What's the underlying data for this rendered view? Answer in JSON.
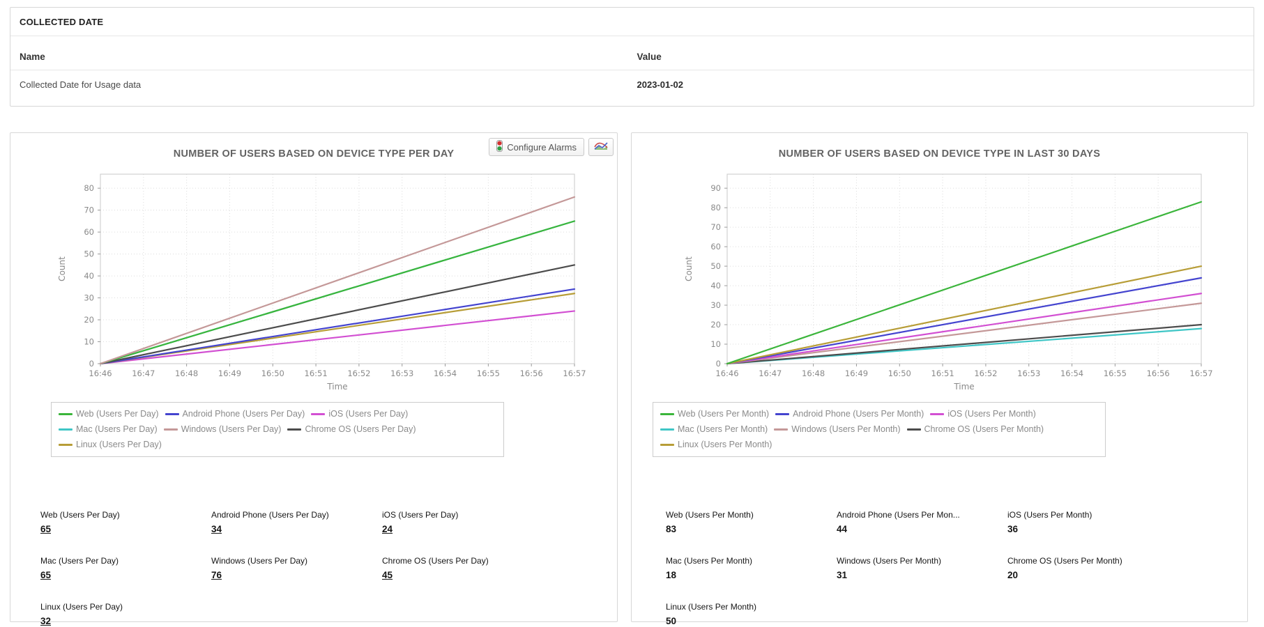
{
  "collected_date_card": {
    "title": "COLLECTED DATE",
    "columns": {
      "name": "Name",
      "value": "Value"
    },
    "rows": [
      {
        "name": "Collected Date for Usage data",
        "value": "2023-01-02"
      }
    ]
  },
  "toolbar": {
    "configure_alarms_label": "Configure Alarms"
  },
  "charts": [
    {
      "type": "line",
      "title": "NUMBER OF USERS BASED ON DEVICE TYPE PER DAY",
      "xlabel": "Time",
      "ylabel": "Count",
      "x": [
        "16:46",
        "16:47",
        "16:48",
        "16:49",
        "16:50",
        "16:51",
        "16:52",
        "16:53",
        "16:54",
        "16:55",
        "16:56",
        "16:57"
      ],
      "ylim": [
        0,
        80
      ],
      "ytick_step": 10,
      "grid": true,
      "legend_position": "bottom",
      "series": [
        {
          "name": "Web (Users Per Day)",
          "color": "#3bb53b",
          "y_start": 0,
          "y_end": 65,
          "z": 5
        },
        {
          "name": "Android Phone (Users Per Day)",
          "color": "#4444cf",
          "y_start": 0,
          "y_end": 34,
          "z": 3
        },
        {
          "name": "iOS (Users Per Day)",
          "color": "#d24fd2",
          "y_start": 0,
          "y_end": 24,
          "z": 1
        },
        {
          "name": "Mac (Users Per Day)",
          "color": "#3fc6c6",
          "y_start": 0,
          "y_end": 65,
          "z": 0
        },
        {
          "name": "Windows (Users Per Day)",
          "color": "#c49898",
          "y_start": 0,
          "y_end": 76,
          "z": 6
        },
        {
          "name": "Chrome OS (Users Per Day)",
          "color": "#4c4c4c",
          "y_start": 0,
          "y_end": 45,
          "z": 4
        },
        {
          "name": "Linux (Users Per Day)",
          "color": "#b79d37",
          "y_start": 0,
          "y_end": 32,
          "z": 2
        }
      ],
      "values_panel": [
        {
          "label": "Web (Users Per Day)",
          "value": "65",
          "linked": true
        },
        {
          "label": "Android Phone (Users Per Day)",
          "value": "34",
          "linked": true
        },
        {
          "label": "iOS (Users Per Day)",
          "value": "24",
          "linked": true
        },
        {
          "label": "Mac (Users Per Day)",
          "value": "65",
          "linked": true
        },
        {
          "label": "Windows (Users Per Day)",
          "value": "76",
          "linked": true
        },
        {
          "label": "Chrome OS (Users Per Day)",
          "value": "45",
          "linked": true
        },
        {
          "label": "Linux (Users Per Day)",
          "value": "32",
          "linked": true
        }
      ]
    },
    {
      "type": "line",
      "title": "NUMBER OF USERS BASED ON DEVICE TYPE IN LAST 30 DAYS",
      "xlabel": "Time",
      "ylabel": "Count",
      "x": [
        "16:46",
        "16:47",
        "16:48",
        "16:49",
        "16:50",
        "16:51",
        "16:52",
        "16:53",
        "16:54",
        "16:55",
        "16:56",
        "16:57"
      ],
      "ylim": [
        0,
        90
      ],
      "ytick_step": 10,
      "grid": true,
      "legend_position": "bottom",
      "series": [
        {
          "name": "Web (Users Per Month)",
          "color": "#3bb53b",
          "y_start": 0,
          "y_end": 83,
          "z": 6
        },
        {
          "name": "Android Phone (Users Per Month)",
          "color": "#4444cf",
          "y_start": 0,
          "y_end": 44,
          "z": 4
        },
        {
          "name": "iOS (Users Per Month)",
          "color": "#d24fd2",
          "y_start": 0,
          "y_end": 36,
          "z": 3
        },
        {
          "name": "Mac (Users Per Month)",
          "color": "#3fc6c6",
          "y_start": 0,
          "y_end": 18,
          "z": 0
        },
        {
          "name": "Windows (Users Per Month)",
          "color": "#c49898",
          "y_start": 0,
          "y_end": 31,
          "z": 2
        },
        {
          "name": "Chrome OS (Users Per Month)",
          "color": "#4c4c4c",
          "y_start": 0,
          "y_end": 20,
          "z": 1
        },
        {
          "name": "Linux (Users Per Month)",
          "color": "#b79d37",
          "y_start": 0,
          "y_end": 50,
          "z": 5
        }
      ],
      "values_panel": [
        {
          "label": "Web (Users Per Month)",
          "value": "83",
          "linked": false
        },
        {
          "label": "Android Phone (Users Per Mon...",
          "value": "44",
          "linked": false
        },
        {
          "label": "iOS (Users Per Month)",
          "value": "36",
          "linked": false
        },
        {
          "label": "Mac (Users Per Month)",
          "value": "18",
          "linked": false
        },
        {
          "label": "Windows (Users Per Month)",
          "value": "31",
          "linked": false
        },
        {
          "label": "Chrome OS (Users Per Month)",
          "value": "20",
          "linked": false
        },
        {
          "label": "Linux (Users Per Month)",
          "value": "50",
          "linked": false
        }
      ]
    }
  ],
  "colors": {
    "grid": "#dcdcdc",
    "plot_border": "#c9c9c9",
    "axis_text": "#8a8a8a",
    "title_text": "#636363"
  }
}
